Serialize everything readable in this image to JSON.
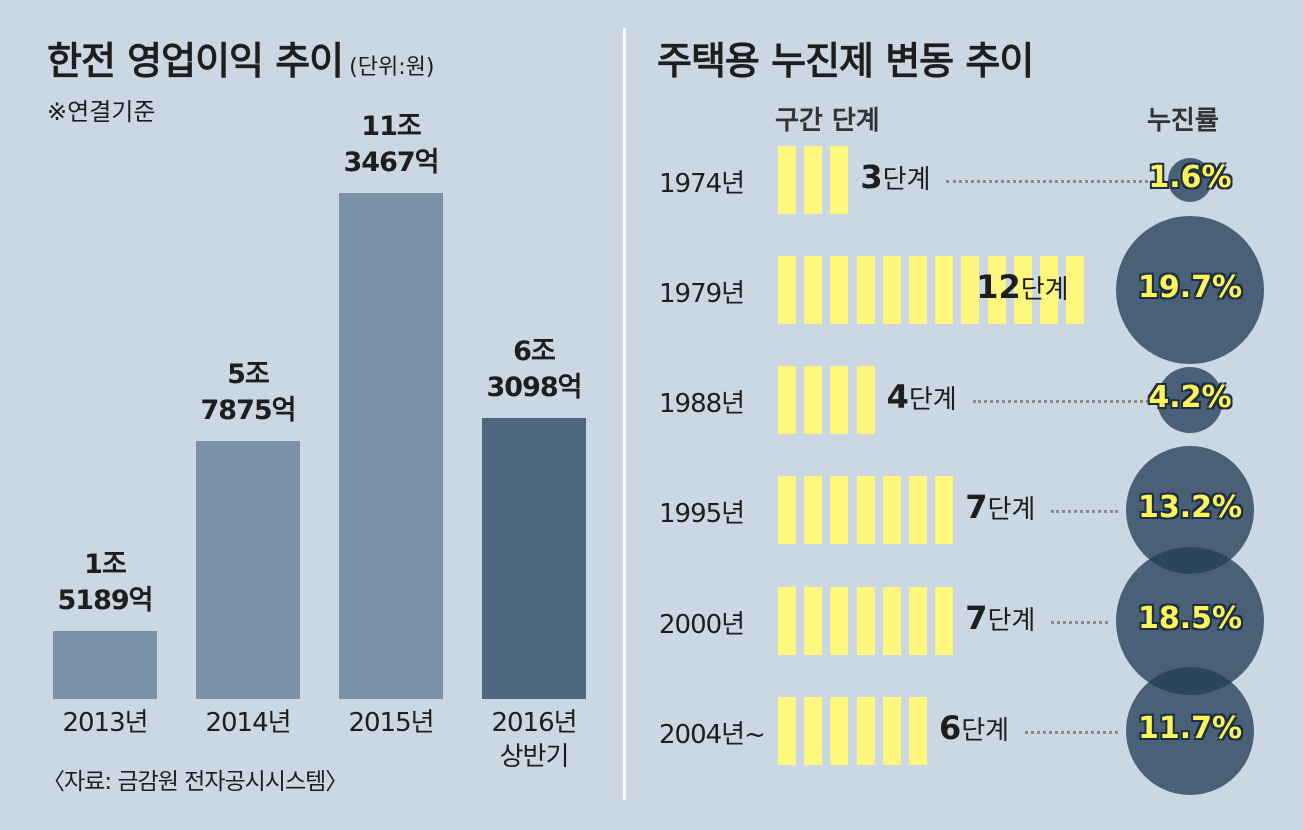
{
  "left_chart": {
    "title": "한전 영업이익 추이",
    "unit": "(단위:원)",
    "note": "※연결기준",
    "source": "〈자료: 금감원 전자공시시스템〉"
  },
  "right_chart": {
    "title": "주택용 누진제 변동 추이",
    "col_stage": "구간 단계",
    "col_rate": "누진률",
    "stage_suffix": "단계"
  },
  "colors": {
    "background": "#cbd8e4",
    "bar": "#7a91a8",
    "bar_highlight": "#4d6880",
    "segment": "#fff77d",
    "circle": "#243e58",
    "rate_text": "#fff35a"
  },
  "chart_data": [
    {
      "type": "bar",
      "title": "한전 영업이익 추이",
      "unit": "원",
      "categories": [
        "2013년",
        "2014년",
        "2015년",
        "2016년 상반기"
      ],
      "category_lines": [
        [
          "2013년"
        ],
        [
          "2014년"
        ],
        [
          "2015년"
        ],
        [
          "2016년",
          "상반기"
        ]
      ],
      "values_eok": [
        15189,
        57875,
        113467,
        63098
      ],
      "data_labels": [
        [
          "1조",
          "5189억"
        ],
        [
          "5조",
          "7875억"
        ],
        [
          "11조",
          "3467억"
        ],
        [
          "6조",
          "3098억"
        ]
      ],
      "highlight_index": 3,
      "ylim": [
        0,
        113467
      ]
    },
    {
      "type": "table",
      "title": "주택용 누진제 변동 추이",
      "rows": [
        {
          "year": "1974년",
          "stages": 3,
          "rate": "1.6%",
          "rate_value": 1.6
        },
        {
          "year": "1979년",
          "stages": 12,
          "rate": "19.7%",
          "rate_value": 19.7
        },
        {
          "year": "1988년",
          "stages": 4,
          "rate": "4.2%",
          "rate_value": 4.2
        },
        {
          "year": "1995년",
          "stages": 7,
          "rate": "13.2%",
          "rate_value": 13.2
        },
        {
          "year": "2000년",
          "stages": 7,
          "rate": "18.5%",
          "rate_value": 18.5
        },
        {
          "year": "2004년~",
          "stages": 6,
          "rate": "11.7%",
          "rate_value": 11.7
        }
      ]
    }
  ]
}
